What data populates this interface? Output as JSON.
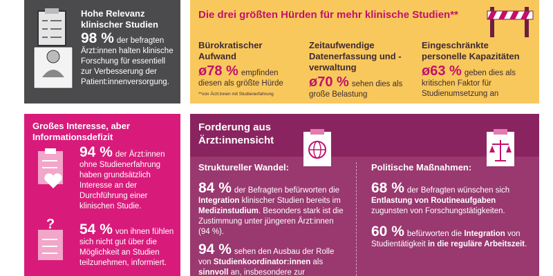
{
  "relevance": {
    "title": "Hohe Relevanz klinischer Studien",
    "stat": "98 %",
    "text": "der befragten Ärzt:innen halten klinische Forschung für essentiell zur Verbesserung der Patient:innenversorgung."
  },
  "hurdles": {
    "title": "Die drei größten Hürden für mehr klinische Studien**",
    "footnote": "**von Ärzt:innen mit Studienerfahrung",
    "items": [
      {
        "heading": "Bürokratischer Aufwand",
        "stat": "ø78 %",
        "text": "empfinden diesen als größte Hürde"
      },
      {
        "heading": "Zeitaufwendige Datenerfassung und -verwaltung",
        "stat": "ø70 %",
        "text": "sehen dies als große Belastung"
      },
      {
        "heading": "Eingeschränkte personelle Kapazitäten",
        "stat": "ø63 %",
        "text": "geben dies als kritischen Faktor für Studienumsetzung an"
      }
    ]
  },
  "interest": {
    "title": "Großes Interesse, aber Informationsdefizit",
    "items": [
      {
        "stat": "94 %",
        "text": "der Ärzt:innen ohne Studienerfahrung haben grundsätzlich Interesse an der Durchführung einer klinischen Studie."
      },
      {
        "stat": "54 %",
        "text": "von ihnen fühlen sich nicht gut über die Möglichkeit an Studien teilzunehmen, informiert."
      }
    ]
  },
  "demands": {
    "title": "Forderung aus Ärzt:innensicht",
    "columns": [
      {
        "heading": "Struktureller Wandel:",
        "items": [
          {
            "stat": "84 %",
            "parts": [
              "der Befragten befürworten die ",
              "Integration",
              " klinischer Studien bereits im ",
              "Medizinstudium",
              ". Besonders stark ist die Zustimmung unter jüngeren Ärzt:innen (94 %)."
            ]
          },
          {
            "stat": "94 %",
            "parts": [
              "sehen den Ausbau der Rolle von ",
              "Studienkoordinator:innen",
              " als ",
              "sinnvoll",
              " an, insbesondere zur Unterstützung"
            ]
          }
        ]
      },
      {
        "heading": "Politische Maßnahmen:",
        "items": [
          {
            "stat": "68 %",
            "parts": [
              "der Befragten wünschen sich ",
              "Entlastung von Routineaufgaben",
              " zugunsten von Forschungstätigkeiten."
            ]
          },
          {
            "stat": "60 %",
            "parts": [
              "befürworten die ",
              "Integration",
              " von Studientätigkeit ",
              "in die reguläre Arbeitszeit",
              "."
            ]
          }
        ]
      }
    ]
  }
}
